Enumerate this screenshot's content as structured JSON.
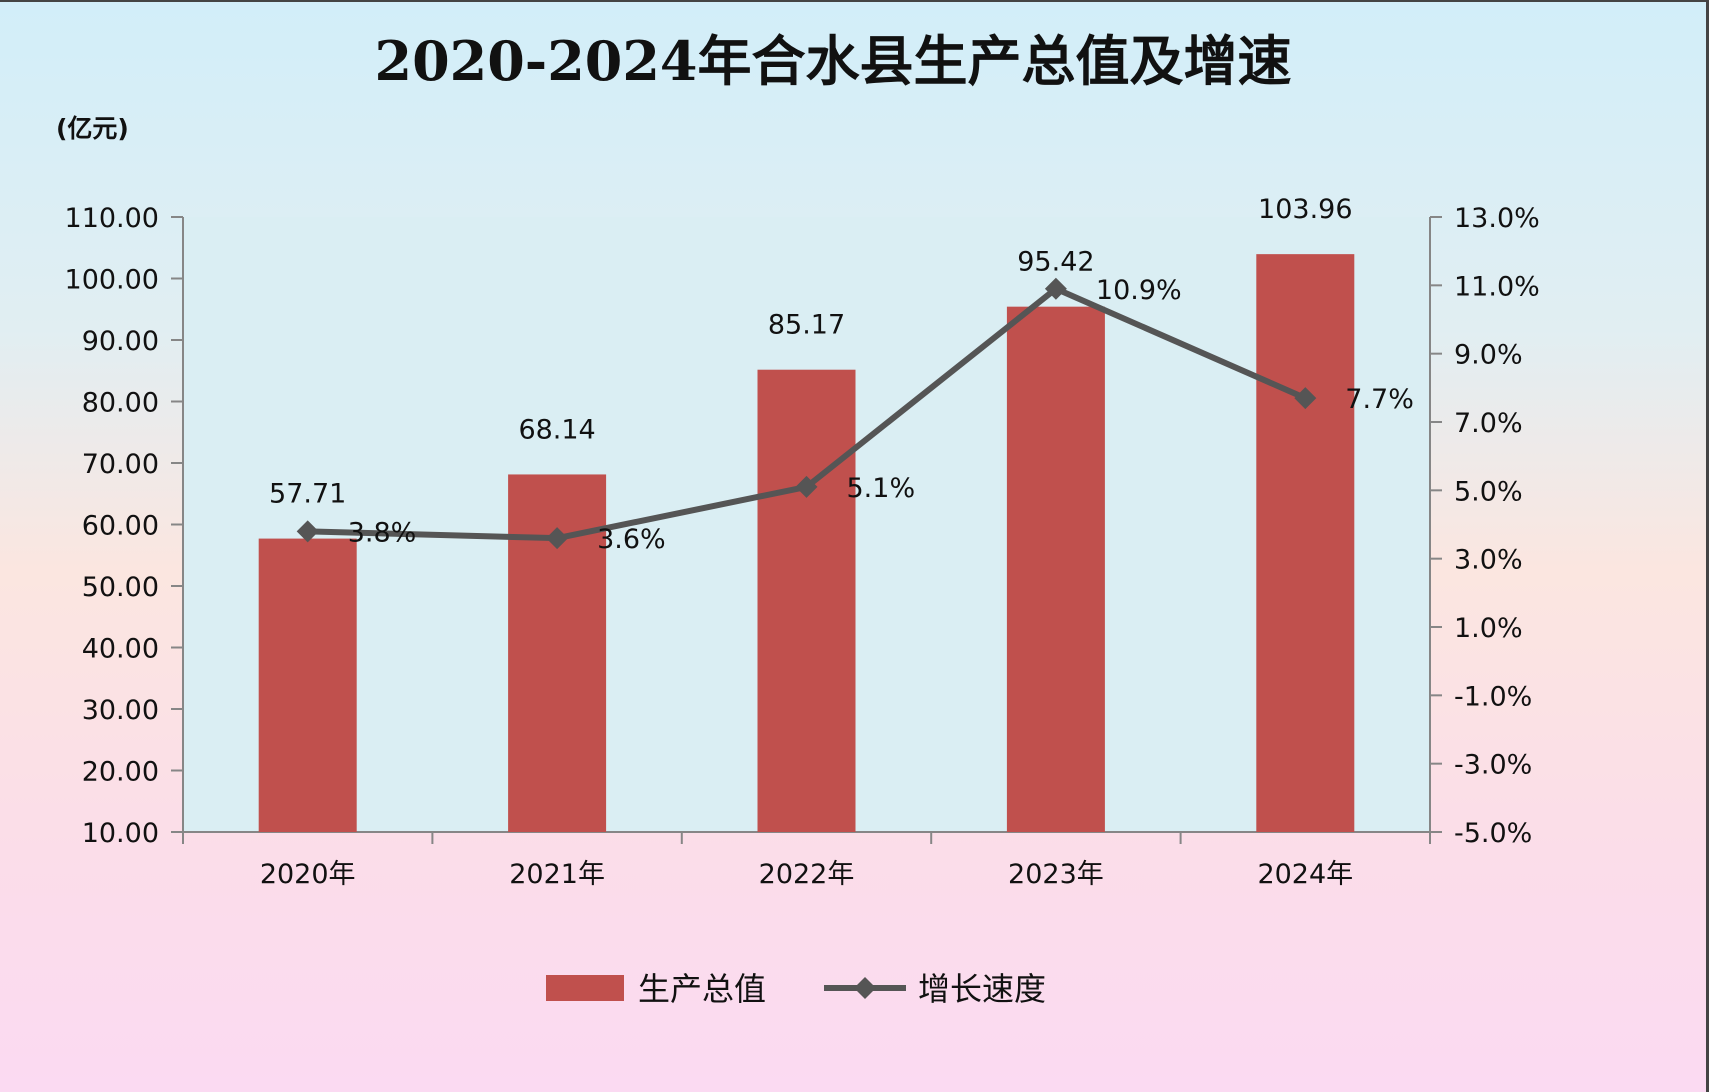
{
  "chart_data": {
    "type": "bar",
    "title": "2020-2024年合水县生产总值及增速",
    "unit_label": "(亿元)",
    "categories": [
      "2020年",
      "2021年",
      "2022年",
      "2023年",
      "2024年"
    ],
    "series": [
      {
        "name": "生产总值",
        "type": "bar",
        "axis": "left",
        "color": "#c0504d",
        "values": [
          57.71,
          68.14,
          85.17,
          95.42,
          103.96
        ],
        "value_labels": [
          "57.71",
          "68.14",
          "85.17",
          "95.42",
          "103.96"
        ]
      },
      {
        "name": "增长速度",
        "type": "line",
        "axis": "right",
        "color": "#555555",
        "marker": "diamond",
        "values": [
          3.8,
          3.6,
          5.1,
          10.9,
          7.7
        ],
        "value_labels": [
          "3.8%",
          "3.6%",
          "5.1%",
          "10.9%",
          "7.7%"
        ]
      }
    ],
    "y_left": {
      "min": 10,
      "max": 110,
      "ticks": [
        "10.00",
        "20.00",
        "30.00",
        "40.00",
        "50.00",
        "60.00",
        "70.00",
        "80.00",
        "90.00",
        "100.00",
        "110.00"
      ]
    },
    "y_right": {
      "min": -5,
      "max": 13,
      "ticks": [
        "-5.0%",
        "-3.0%",
        "-1.0%",
        "1.0%",
        "3.0%",
        "5.0%",
        "7.0%",
        "9.0%",
        "11.0%",
        "13.0%"
      ]
    },
    "grid": false,
    "legend_position": "bottom",
    "plot_background": "#daeef3"
  }
}
